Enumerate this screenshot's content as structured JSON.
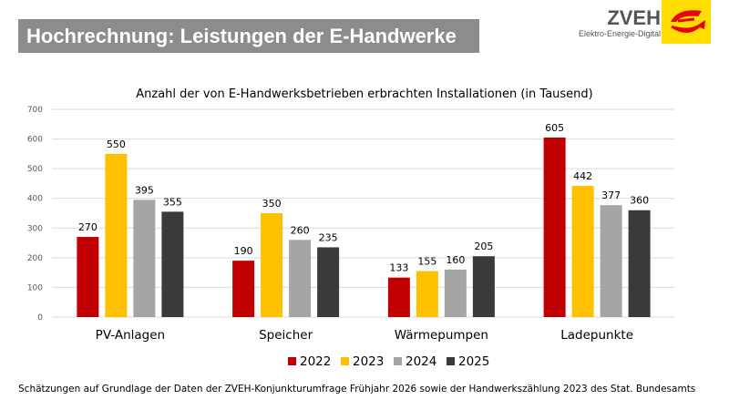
{
  "header": {
    "title": "Hochrechnung: Leistungen der E-Handwerke"
  },
  "logo": {
    "name": "ZVEH",
    "tagline": "Elektro-Energie-Digital",
    "colors": {
      "background": "#ffdd00",
      "mark": "#e30613"
    }
  },
  "chart_data": {
    "type": "bar",
    "title": "Anzahl der von E-Handwerksbetrieben erbrachten Installationen (in Tausend)",
    "categories": [
      "PV-Anlagen",
      "Speicher",
      "Wärmepumpen",
      "Ladepunkte"
    ],
    "series": [
      {
        "name": "2022",
        "color": "#c00000",
        "values": [
          270,
          190,
          133,
          605
        ]
      },
      {
        "name": "2023",
        "color": "#ffc000",
        "values": [
          550,
          350,
          155,
          442
        ]
      },
      {
        "name": "2024",
        "color": "#a5a5a5",
        "values": [
          395,
          260,
          160,
          377
        ]
      },
      {
        "name": "2025",
        "color": "#3a3a3a",
        "values": [
          355,
          235,
          205,
          360
        ]
      }
    ],
    "ylim": [
      0,
      700
    ],
    "yticks": [
      0,
      100,
      200,
      300,
      400,
      500,
      600,
      700
    ],
    "grid": true,
    "legend": "bottom"
  },
  "footnote": "Schätzungen auf Grundlage der Daten der ZVEH-Konjunkturumfrage Frühjahr 2026 sowie der Handwerkszählung 2023 des Stat. Bundesamts"
}
